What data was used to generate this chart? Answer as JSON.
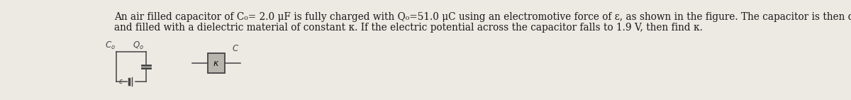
{
  "text_line1": "An air filled capacitor of C₀= 2.0 μF is fully charged with Q₀=51.0 μC using an electromotive force of ε, as shown in the figure. The capacitor is then disconnected from the battery",
  "text_line2": "and filled with a dielectric material of constant κ. If the electric potential across the capacitor falls to 1.9 V, then find κ.",
  "bg_color": "#ede9e3",
  "text_color": "#1a1a1a",
  "font_size": 9.8,
  "fig_width": 12.0,
  "fig_height": 1.41,
  "dpi": 100
}
